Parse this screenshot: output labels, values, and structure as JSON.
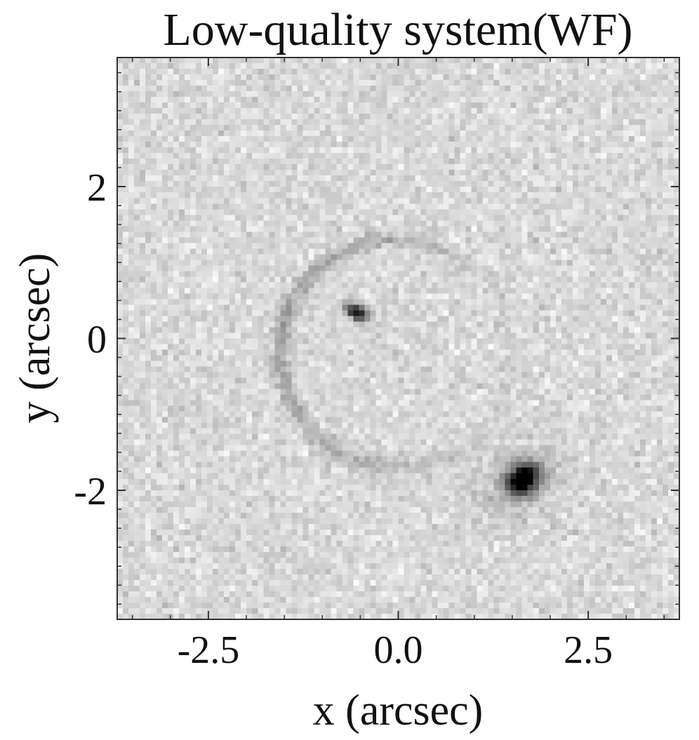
{
  "chart_data": {
    "type": "heatmap",
    "title": "Low-quality system(WF)",
    "subtitle": "",
    "xlabel": "x (arcsec)",
    "ylabel": "y (arcsec)",
    "xlim": [
      -3.7,
      3.7
    ],
    "ylim": [
      -3.7,
      3.7
    ],
    "xticks": [
      {
        "value": -2.5,
        "label": "-2.5"
      },
      {
        "value": 0.0,
        "label": "0.0"
      },
      {
        "value": 2.5,
        "label": "2.5"
      }
    ],
    "yticks": [
      {
        "value": 2,
        "label": "2"
      },
      {
        "value": 0,
        "label": "0"
      },
      {
        "value": -2,
        "label": "-2"
      }
    ],
    "grid": false,
    "legend": "none",
    "colormap": "gray_r",
    "pixel_grid": [
      100,
      100
    ],
    "background_level": 0.15,
    "noise_level": 0.07,
    "features": [
      {
        "name": "ring",
        "kind": "arc",
        "center": [
          -0.05,
          -0.2
        ],
        "radius": 1.5,
        "width": 0.08,
        "amplitude": 0.22
      },
      {
        "name": "compact-source-north",
        "kind": "blob",
        "center": [
          -0.55,
          0.35
        ],
        "sigma": [
          0.12,
          0.07
        ],
        "angle_deg": -30,
        "amplitude": 0.75
      },
      {
        "name": "compact-source-south",
        "kind": "blob",
        "center": [
          1.65,
          -1.85
        ],
        "sigma": [
          0.16,
          0.13
        ],
        "angle_deg": 35,
        "amplitude": 0.95
      },
      {
        "name": "diffuse-halo-south",
        "kind": "blob",
        "center": [
          1.6,
          -1.9
        ],
        "sigma": [
          0.45,
          0.3
        ],
        "angle_deg": 35,
        "amplitude": 0.12
      }
    ],
    "colors": {
      "frame": "#333333",
      "low": "#ffffff",
      "high": "#000000"
    }
  }
}
